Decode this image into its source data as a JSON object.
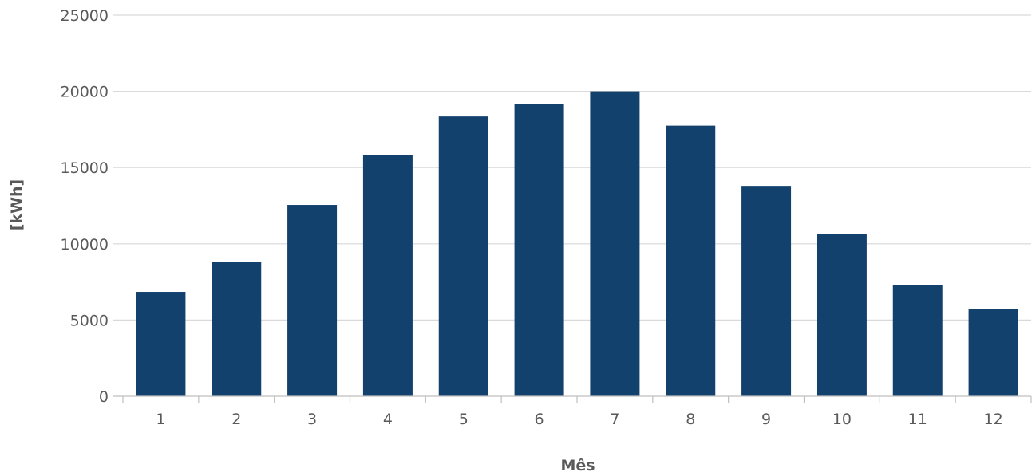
{
  "chart_data": {
    "type": "bar",
    "title": "",
    "xlabel": "Mês",
    "ylabel": "[kWh]",
    "categories": [
      "1",
      "2",
      "3",
      "4",
      "5",
      "6",
      "7",
      "8",
      "9",
      "10",
      "11",
      "12"
    ],
    "values": [
      6850,
      8800,
      12550,
      15800,
      18350,
      19150,
      20000,
      17750,
      13800,
      10650,
      7300,
      5750
    ],
    "ylim": [
      0,
      25000
    ],
    "yticks": [
      0,
      5000,
      10000,
      15000,
      20000,
      25000
    ],
    "grid": true,
    "legend": "none",
    "bar_color": "#12416e"
  }
}
